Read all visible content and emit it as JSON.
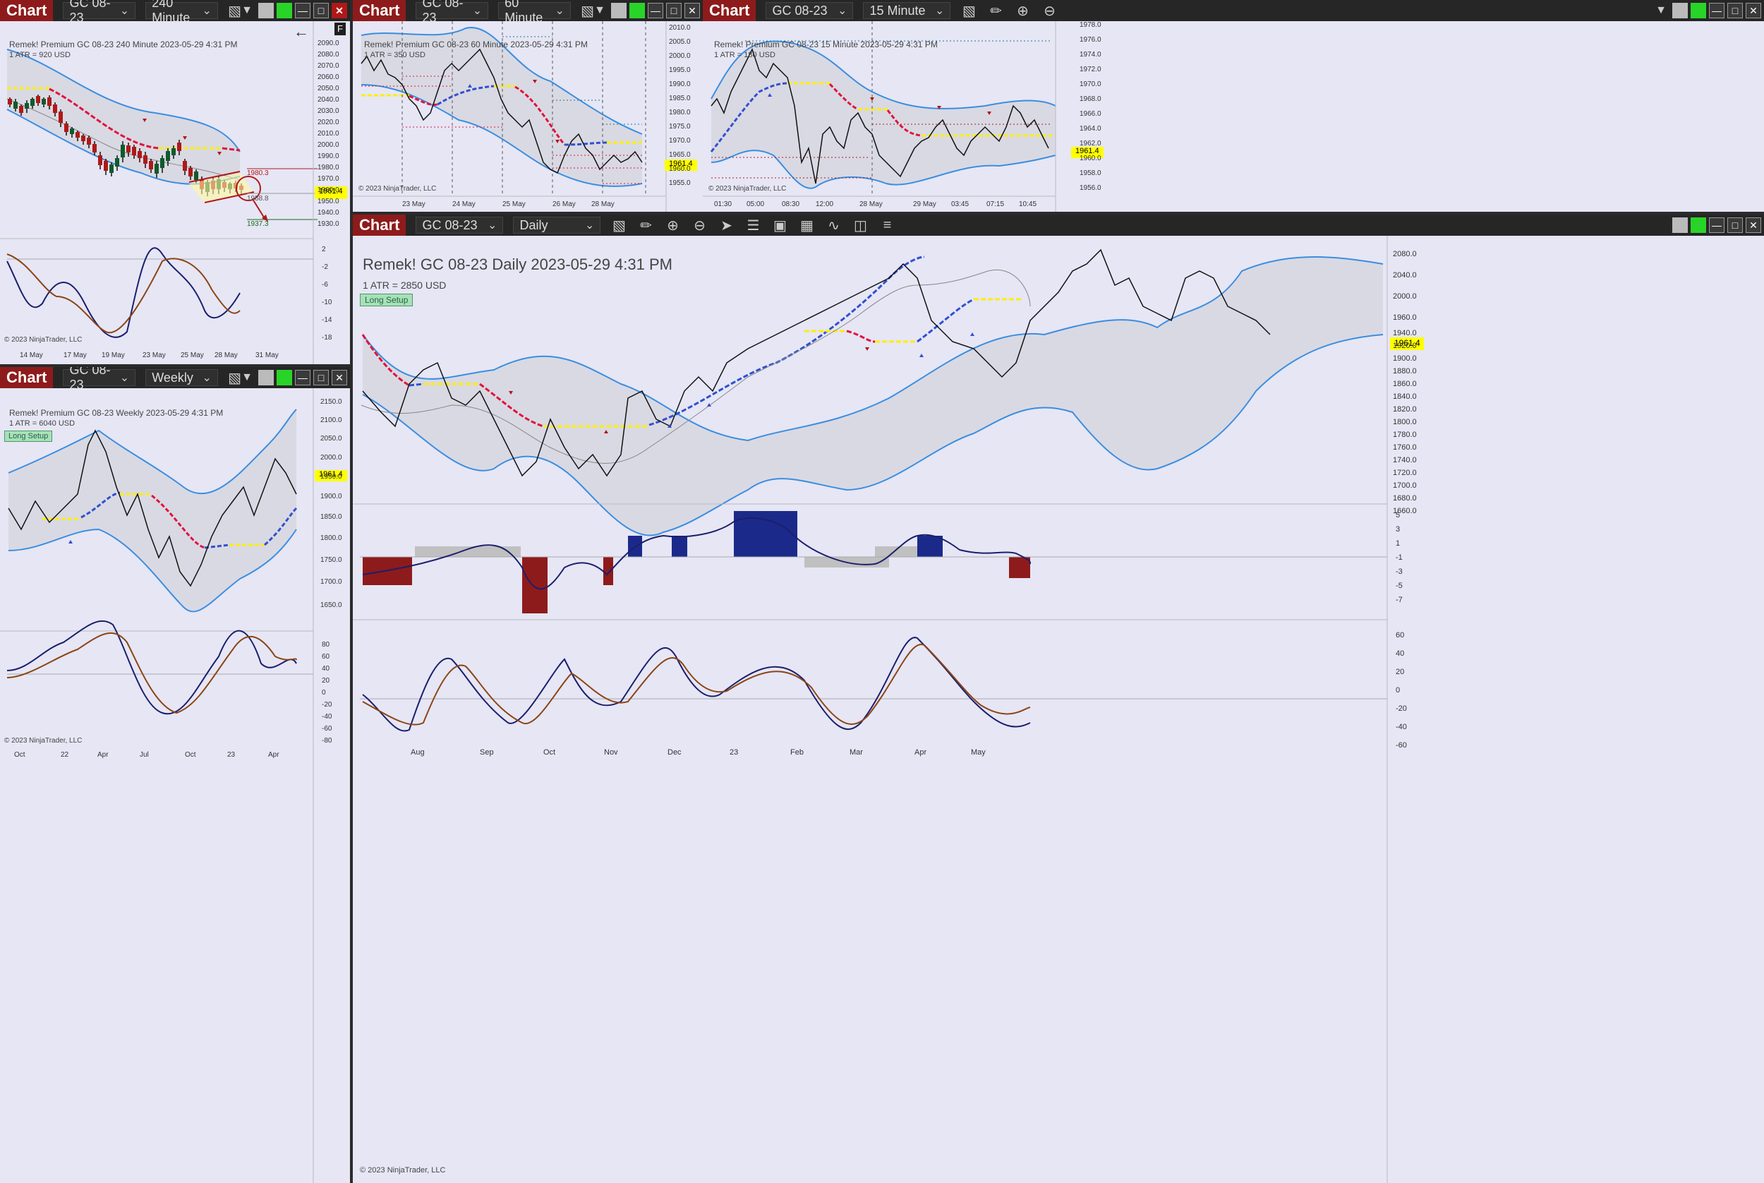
{
  "chart_button": "Chart",
  "instrument": "GC 08-23",
  "last_price": "1961.4",
  "copyright": "© 2023 NinjaTrader, LLC",
  "colors": {
    "bg": "#e6e6f5",
    "up": "#0f5a2b",
    "down": "#b01818",
    "band": "#3a8ee0",
    "price_tag": "#ffff00",
    "title_bar": "#8e1b1b"
  },
  "icons": [
    "bars-type-icon",
    "draw-tools-icon",
    "zoom-in-icon",
    "zoom-out-icon",
    "pointer-icon",
    "data-box-icon",
    "templates-icon",
    "strategies-icon",
    "indicators-icon",
    "properties-icon",
    "chart-style-icon",
    "menu-icon"
  ],
  "chart240": {
    "interval": "240 Minute",
    "title": "Remek!  Premium  GC 08-23  240 Minute  2023-05-29 4:31 PM",
    "atr": "1 ATR = 920 USD",
    "f_label": "F",
    "annot_high": "1980.3",
    "annot_mid": "1958.8",
    "annot_low": "1937.3",
    "y_ticks": [
      "2090.0",
      "2080.0",
      "2070.0",
      "2060.0",
      "2050.0",
      "2040.0",
      "2030.0",
      "2020.0",
      "2010.0",
      "2000.0",
      "1990.0",
      "1980.0",
      "1970.0",
      "1960.0",
      "1950.0",
      "1940.0",
      "1930.0"
    ],
    "osc_ticks": [
      "2",
      "-2",
      "-6",
      "-10",
      "-14",
      "-18"
    ],
    "x_labels": [
      "14 May",
      "17 May",
      "19 May",
      "23 May",
      "25 May",
      "28 May",
      "31 May"
    ]
  },
  "chart60": {
    "interval": "60 Minute",
    "title": "Remek!  Premium  GC 08-23  60 Minute  2023-05-29 4:31 PM",
    "atr": "1 ATR = 350 USD",
    "y_ticks": [
      "2010.0",
      "2005.0",
      "2000.0",
      "1995.0",
      "1990.0",
      "1985.0",
      "1980.0",
      "1975.0",
      "1970.0",
      "1965.0",
      "1960.0",
      "1955.0"
    ],
    "x_labels": [
      "23 May",
      "24 May",
      "25 May",
      "26 May",
      "28 May"
    ]
  },
  "chart15": {
    "interval": "15 Minute",
    "title": "Remek!  Premium  GC 08-23  15 Minute  2023-05-29 4:31 PM",
    "atr": "1 ATR = 180 USD",
    "y_ticks": [
      "1978.0",
      "1976.0",
      "1974.0",
      "1972.0",
      "1970.0",
      "1968.0",
      "1966.0",
      "1964.0",
      "1962.0",
      "1960.0",
      "1958.0",
      "1956.0"
    ],
    "x_labels": [
      "01:30",
      "05:00",
      "08:30",
      "12:00",
      "28 May",
      "29 May",
      "03:45",
      "07:15",
      "10:45"
    ]
  },
  "chartWeekly": {
    "interval": "Weekly",
    "title": "Remek!  Premium  GC 08-23  Weekly  2023-05-29 4:31 PM",
    "atr": "1 ATR = 6040 USD",
    "badge": "Long Setup",
    "y_ticks": [
      "2150.0",
      "2100.0",
      "2050.0",
      "2000.0",
      "1950.0",
      "1900.0",
      "1850.0",
      "1800.0",
      "1750.0",
      "1700.0",
      "1650.0"
    ],
    "osc_ticks": [
      "80",
      "60",
      "40",
      "20",
      "0",
      "-20",
      "-40",
      "-60",
      "-80"
    ],
    "x_labels": [
      "Oct",
      "22",
      "Apr",
      "Jul",
      "Oct",
      "23",
      "Apr"
    ]
  },
  "chartDaily": {
    "interval": "Daily",
    "title": "Remek!  GC 08-23  Daily  2023-05-29 4:31 PM",
    "atr": "1 ATR = 2850 USD",
    "badge": "Long Setup",
    "y_ticks": [
      "2080.0",
      "2040.0",
      "2000.0",
      "1960.0",
      "1940.0",
      "1920.0",
      "1900.0",
      "1880.0",
      "1860.0",
      "1840.0",
      "1820.0",
      "1800.0",
      "1780.0",
      "1760.0",
      "1740.0",
      "1720.0",
      "1700.0",
      "1680.0",
      "1660.0"
    ],
    "hist_ticks": [
      "5",
      "3",
      "1",
      "-1",
      "-3",
      "-5",
      "-7"
    ],
    "osc_ticks": [
      "60",
      "40",
      "20",
      "0",
      "-20",
      "-40",
      "-60"
    ],
    "x_labels": [
      "Aug",
      "Sep",
      "Oct",
      "Nov",
      "Dec",
      "23",
      "Feb",
      "Mar",
      "Apr",
      "May"
    ]
  }
}
